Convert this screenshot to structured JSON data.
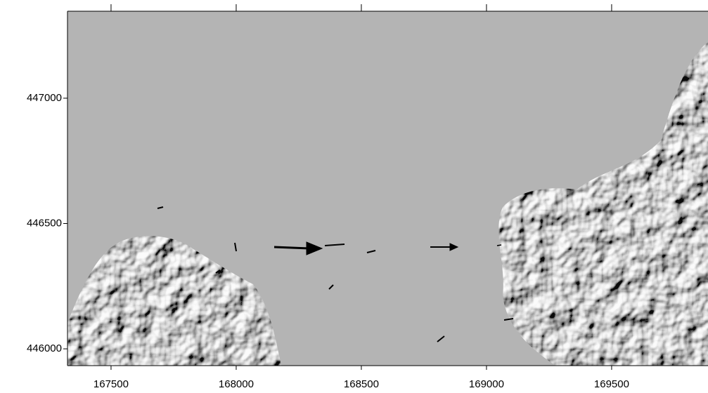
{
  "chart_data": {
    "type": "map",
    "xlim": [
      167326,
      169885
    ],
    "ylim": [
      445933,
      447347
    ],
    "xticks": [
      167500,
      168000,
      168500,
      169000,
      169500
    ],
    "yticks": [
      446000,
      446500,
      447000
    ]
  }
}
